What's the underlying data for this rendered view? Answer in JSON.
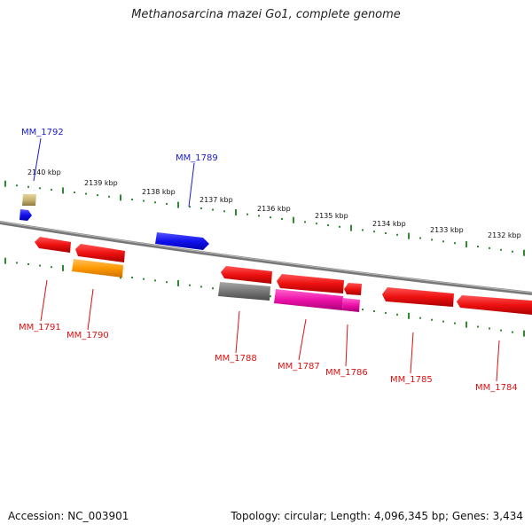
{
  "title": "Methanosarcina mazei Go1, complete genome",
  "footer": {
    "accession": "Accession: NC_003901",
    "summary": "Topology: circular; Length: 4,096,345 bp; Genes: 3,434"
  },
  "colors": {
    "backbone": "#8a8a8a",
    "ticks": "#2e8b2e",
    "forward_label": "#1a1acc",
    "reverse_label": "#dd1111",
    "red_gene": "#ee1111",
    "blue_gene": "#1111ee",
    "orange_gene": "#ff9900",
    "gray_gene": "#777777",
    "magenta_gene": "#ee11aa",
    "khaki_gene": "#c8b470"
  },
  "scale_labels": [
    "2140 kbp",
    "2139 kbp",
    "2138 kbp",
    "2137 kbp",
    "2136 kbp",
    "2135 kbp",
    "2134 kbp",
    "2133 kbp",
    "2132 kbp"
  ],
  "gene_labels": {
    "forward": [
      "MM_1792",
      "MM_1789"
    ],
    "reverse": [
      "MM_1791",
      "MM_1790",
      "MM_1788",
      "MM_1787",
      "MM_1786",
      "MM_1785",
      "MM_1784"
    ]
  }
}
